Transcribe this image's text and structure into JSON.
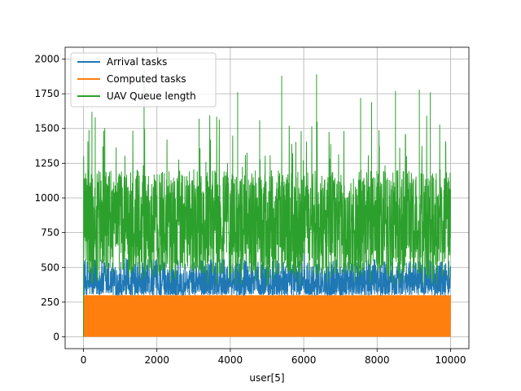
{
  "chart_data": {
    "type": "line",
    "title": "",
    "xlabel": "user[5]",
    "ylabel": "",
    "xlim": [
      -500,
      10500
    ],
    "ylim": [
      -85,
      2085
    ],
    "grid": true,
    "legend_position": "top-left",
    "x_ticks": [
      0,
      2000,
      4000,
      6000,
      8000,
      10000
    ],
    "x_tick_labels": [
      "0",
      "2000",
      "4000",
      "6000",
      "8000",
      "10000"
    ],
    "y_ticks": [
      0,
      250,
      500,
      750,
      1000,
      1250,
      1500,
      1750,
      2000
    ],
    "y_tick_labels": [
      "0",
      "250",
      "500",
      "750",
      "1000",
      "1250",
      "1500",
      "1750",
      "2000"
    ],
    "n_points": 10000,
    "series": [
      {
        "name": "Arrival tasks",
        "color": "#1f77b4",
        "typical_range": [
          300,
          560
        ],
        "peak": 860,
        "start_value": 300
      },
      {
        "name": "Computed tasks",
        "color": "#ff7f0e",
        "typical_range": [
          0,
          300
        ],
        "max": 300
      },
      {
        "name": "UAV Queue length",
        "color": "#2ca02c",
        "typical_range": [
          450,
          1200
        ],
        "peaks": [
          {
            "x": 150,
            "y": 1490
          },
          {
            "x": 230,
            "y": 1620
          },
          {
            "x": 320,
            "y": 1580
          },
          {
            "x": 1650,
            "y": 1920
          },
          {
            "x": 3150,
            "y": 1570
          },
          {
            "x": 4200,
            "y": 1760
          },
          {
            "x": 4800,
            "y": 1560
          },
          {
            "x": 5400,
            "y": 1880
          },
          {
            "x": 6350,
            "y": 1890
          },
          {
            "x": 7550,
            "y": 1720
          },
          {
            "x": 7850,
            "y": 1690
          },
          {
            "x": 8500,
            "y": 1770
          },
          {
            "x": 9150,
            "y": 1780
          },
          {
            "x": 9450,
            "y": 1760
          }
        ],
        "start_value": 0
      }
    ]
  }
}
